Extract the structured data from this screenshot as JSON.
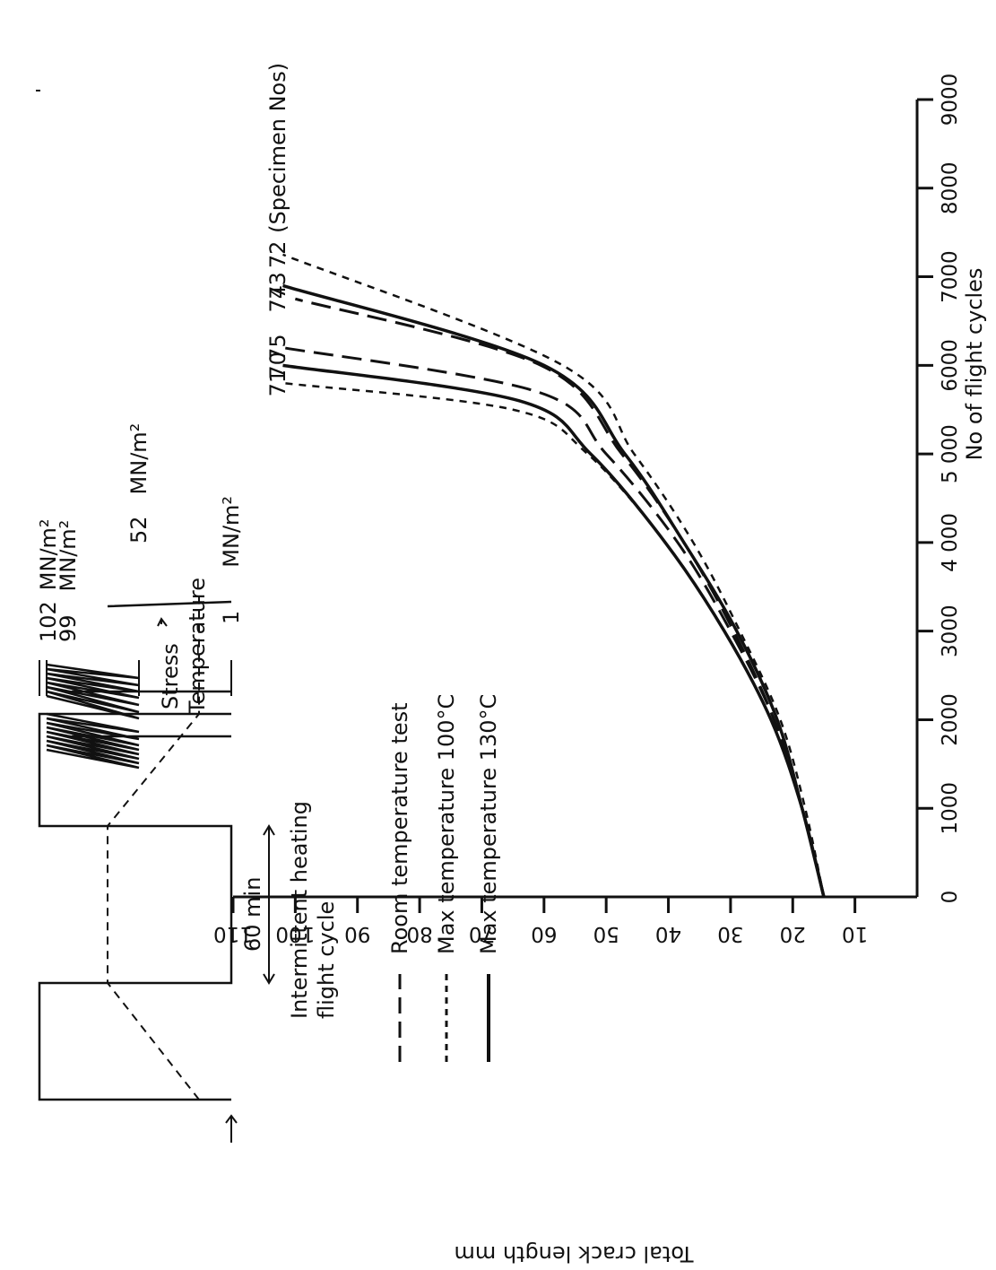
{
  "chart_data": {
    "type": "line",
    "title": "",
    "xlabel": "No of flight cycles",
    "ylabel": "Total crack length mm",
    "xlim": [
      0,
      9000
    ],
    "ylim": [
      0,
      110
    ],
    "x_ticks": [
      0,
      1000,
      2000,
      3000,
      4000,
      5000,
      6000,
      7000,
      8000,
      9000
    ],
    "x_tick_labels": [
      "0",
      "1000",
      "2000",
      "3000",
      "4 000",
      "5 000",
      "6000",
      "7000",
      "8000",
      "9000"
    ],
    "y_ticks": [
      10,
      20,
      30,
      40,
      50,
      60,
      70,
      80,
      90,
      100,
      110
    ],
    "y_tick_labels": [
      "10",
      "20",
      "30",
      "40",
      "50",
      "60",
      "70",
      "80",
      "90",
      "100",
      "110"
    ],
    "legend": [
      {
        "label": "Room temperature test",
        "style": "long-dash"
      },
      {
        "label": "Max temperature 100°C",
        "style": "short-dash"
      },
      {
        "label": "Max temperature 130°C",
        "style": "solid"
      }
    ],
    "specimen_note": "(Specimen Nos)",
    "series": [
      {
        "name": "71",
        "style": "short-dash",
        "x": [
          0,
          1000,
          2000,
          3000,
          4000,
          5000,
          5500,
          5800
        ],
        "y": [
          15,
          18.5,
          23.5,
          31,
          40.5,
          53,
          65,
          102
        ]
      },
      {
        "name": "70",
        "style": "solid",
        "x": [
          0,
          1000,
          2000,
          3000,
          4000,
          5000,
          5600,
          6000
        ],
        "y": [
          15,
          18.5,
          23.5,
          31,
          40.5,
          52.5,
          64,
          102
        ]
      },
      {
        "name": "75",
        "style": "long-dash",
        "x": [
          0,
          1000,
          2000,
          3000,
          4000,
          5000,
          5700,
          6200
        ],
        "y": [
          15,
          18.5,
          23,
          30,
          38.5,
          50,
          61,
          102
        ]
      },
      {
        "name": "74",
        "style": "long-dash",
        "x": [
          0,
          1000,
          2000,
          3000,
          4000,
          5000,
          6000,
          6750
        ],
        "y": [
          15,
          18.5,
          23,
          29.5,
          37.5,
          47.5,
          60.5,
          100
        ]
      },
      {
        "name": "73",
        "style": "solid",
        "x": [
          0,
          1000,
          2000,
          3000,
          4000,
          5000,
          6000,
          6900
        ],
        "y": [
          15,
          18.5,
          22.5,
          29,
          37.5,
          47,
          60,
          102
        ]
      },
      {
        "name": "72",
        "style": "short-dash",
        "x": [
          0,
          1000,
          2000,
          3000,
          4000,
          5000,
          6000,
          7250
        ],
        "y": [
          15,
          18,
          22,
          28.5,
          36,
          45.5,
          57,
          102
        ]
      }
    ]
  },
  "inset": {
    "stress_label": "Stress",
    "temperature_label": "Temperature",
    "duration_label": "60 min",
    "title_line1": "Intermittent heating",
    "title_line2": "flight cycle",
    "levels": [
      {
        "value": "102",
        "unit": "MN/m²"
      },
      {
        "value": "99",
        "unit": "MN/m²"
      },
      {
        "value": "52",
        "unit": "MN/m²"
      },
      {
        "value": "1",
        "unit": "MN/m²"
      }
    ]
  }
}
